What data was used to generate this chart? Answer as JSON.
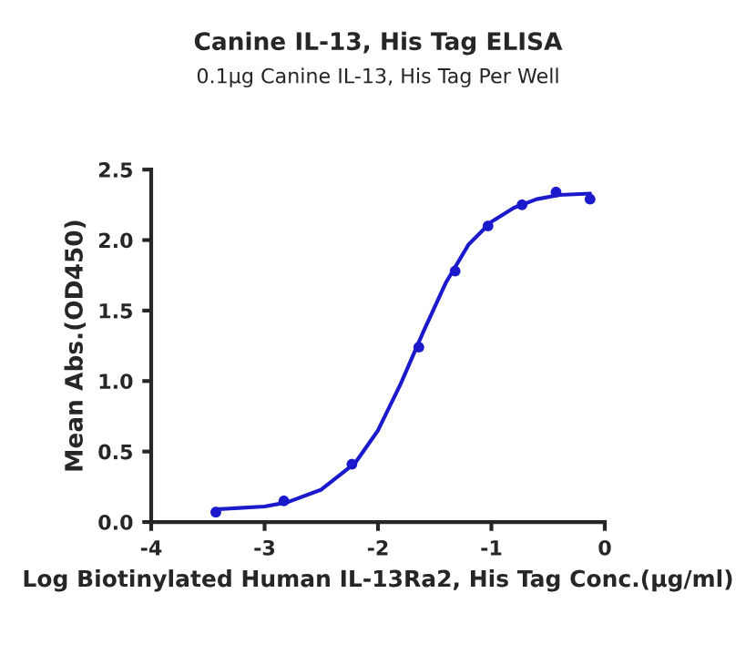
{
  "chart_data": {
    "type": "scatter",
    "title": "Canine IL-13, His Tag ELISA",
    "subtitle": "0.1µg Canine IL-13, His Tag Per Well",
    "xlabel": "Log Biotinylated Human IL-13Ra2, His Tag Conc.(µg/ml)",
    "ylabel": "Mean Abs.(OD450)",
    "xlim": [
      -4,
      0
    ],
    "xticks": [
      -4,
      -3,
      -2,
      -1,
      0
    ],
    "ylim": [
      0,
      2.5
    ],
    "yticks": [
      {
        "value": 0,
        "label": "0.0"
      },
      0.5,
      {
        "value": 1,
        "label": "1.0"
      },
      1.5,
      {
        "value": 2,
        "label": "2.0"
      },
      2.5
    ],
    "grid": false,
    "legend": false,
    "series": [
      {
        "color": "#1a1acc",
        "marker": "circle",
        "x": [
          -3.43,
          -2.83,
          -2.23,
          -1.64,
          -1.32,
          -1.03,
          -0.73,
          -0.43,
          -0.13
        ],
        "values": [
          0.07,
          0.15,
          0.41,
          1.24,
          1.78,
          2.1,
          2.25,
          2.34,
          2.29
        ]
      },
      {
        "type": "line",
        "color": "#1a1acc",
        "marker": "none",
        "line_style": "solid",
        "x": [
          -3.43,
          -3.0,
          -2.8,
          -2.5,
          -2.2,
          -2.0,
          -1.8,
          -1.6,
          -1.4,
          -1.2,
          -1.0,
          -0.8,
          -0.6,
          -0.4,
          -0.13
        ],
        "values": [
          0.09,
          0.11,
          0.14,
          0.23,
          0.42,
          0.65,
          0.98,
          1.35,
          1.7,
          1.97,
          2.13,
          2.23,
          2.29,
          2.32,
          2.33
        ]
      }
    ]
  }
}
